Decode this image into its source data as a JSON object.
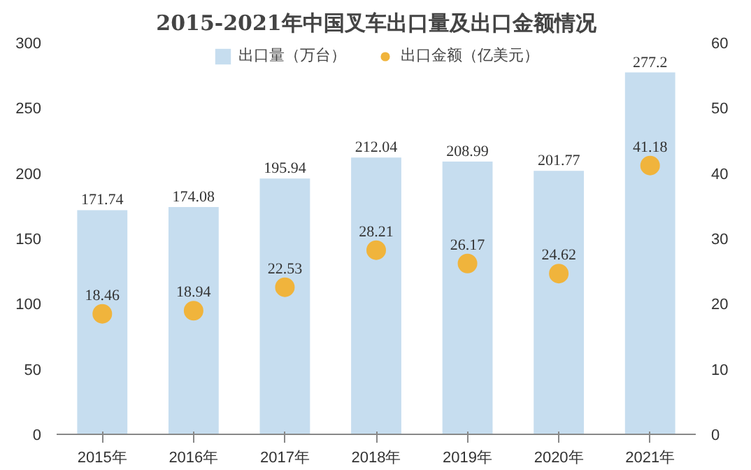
{
  "chart_data": {
    "type": "bar",
    "title": "2015-2021年中国叉车出口量及出口金额情况",
    "categories": [
      "2015年",
      "2016年",
      "2017年",
      "2018年",
      "2019年",
      "2020年",
      "2021年"
    ],
    "series": [
      {
        "name": "出口量（万台）",
        "color": "#c6ddef",
        "values": [
          171.74,
          174.08,
          195.94,
          212.04,
          208.99,
          201.77,
          277.2
        ]
      },
      {
        "name": "出口金额（亿美元）",
        "type": "scatter",
        "axis": "y2",
        "color": "#f0b43c",
        "values": [
          18.46,
          18.94,
          22.53,
          28.21,
          26.17,
          24.62,
          41.18
        ]
      }
    ],
    "ylim": [
      0,
      300
    ],
    "yticks": [
      0,
      50,
      100,
      150,
      200,
      250,
      300
    ],
    "y2lim": [
      0,
      60
    ],
    "y2ticks": [
      0,
      10,
      20,
      30,
      40,
      50,
      60
    ],
    "data_labels": true,
    "grid": false,
    "legend": "top",
    "marker": "circle"
  }
}
